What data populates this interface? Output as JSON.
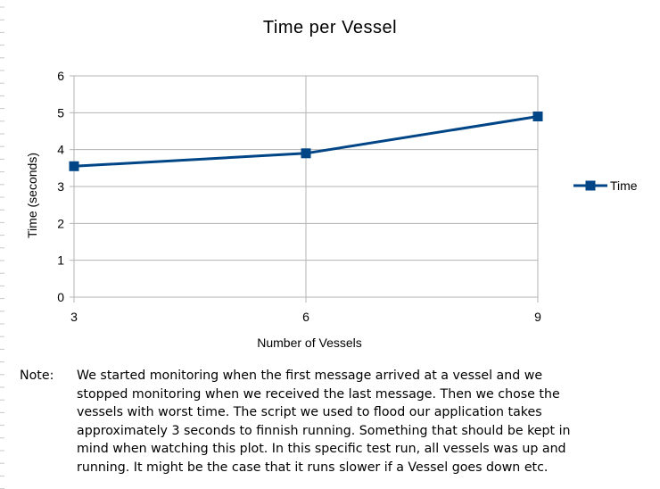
{
  "chart_data": {
    "type": "line",
    "title": "Time per Vessel",
    "xlabel": "Number of Vessels",
    "ylabel": "Time (seconds)",
    "categories": [
      "3",
      "6",
      "9"
    ],
    "x": [
      3,
      6,
      9
    ],
    "ylim": [
      0,
      6
    ],
    "yticks": [
      "0",
      "1",
      "2",
      "3",
      "4",
      "5",
      "6"
    ],
    "grid": true,
    "legend_position": "right",
    "series": [
      {
        "name": "Time",
        "values": [
          3.55,
          3.9,
          4.9
        ],
        "color": "#004586",
        "marker": "square"
      }
    ]
  },
  "note": {
    "label": "Note:",
    "text": "We started monitoring when the first message arrived at a vessel and we stopped monitoring when we received the last message. Then we chose the vessels with worst time. The script we used to flood our application takes approximately 3 seconds to finnish running. Something that should be kept in mind when watching this plot. In this specific test run, all vessels was up and running. It might be the case that it runs slower if a Vessel goes down etc."
  }
}
